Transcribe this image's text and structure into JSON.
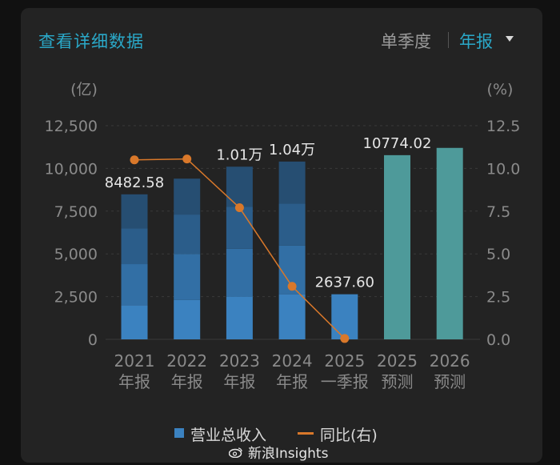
{
  "header": {
    "link_label": "查看详细数据",
    "toggle_quarterly": "单季度",
    "toggle_annual": "年报"
  },
  "chart_data": {
    "type": "bar",
    "left_unit": "(亿)",
    "right_unit": "(%)",
    "left_ticks": [
      "0",
      "2,500",
      "5,000",
      "7,500",
      "10,000",
      "12,500"
    ],
    "right_ticks": [
      "0.0",
      "2.5",
      "5.0",
      "7.5",
      "10.0",
      "12.5"
    ],
    "ylim_left": [
      0,
      12500
    ],
    "ylim_right": [
      0,
      12.5
    ],
    "categories": [
      {
        "year": "2021",
        "kind": "年报"
      },
      {
        "year": "2022",
        "kind": "年报"
      },
      {
        "year": "2023",
        "kind": "年报"
      },
      {
        "year": "2024",
        "kind": "年报"
      },
      {
        "year": "2025",
        "kind": "一季报"
      },
      {
        "year": "2025",
        "kind": "预测"
      },
      {
        "year": "2026",
        "kind": "预测"
      }
    ],
    "series": [
      {
        "name": "营业总收入",
        "axis": "left",
        "values": [
          8482.58,
          9400,
          10100,
          10400,
          2637.6,
          10774.02,
          11200
        ],
        "quarters": [
          [
            2000,
            2400,
            2100,
            1982.58
          ],
          [
            2300,
            2700,
            2300,
            2100
          ],
          [
            2500,
            2800,
            2450,
            2350
          ],
          [
            2637.6,
            2850,
            2450,
            2462.4
          ],
          [
            2637.6
          ],
          [],
          []
        ],
        "labels": [
          "8482.58",
          "",
          "1.01万",
          "1.04万",
          "2637.60",
          "10774.02",
          ""
        ]
      },
      {
        "name": "同比(右)",
        "axis": "right",
        "values": [
          10.5,
          10.55,
          7.7,
          3.1,
          0.05,
          null,
          null
        ]
      }
    ],
    "colors": {
      "actual_quarters": [
        "#3b82c0",
        "#326fa5",
        "#2b5d8a",
        "#264e72"
      ],
      "forecast": "#4e9a9a",
      "line": "#d9782a",
      "axis_text": "#8a8a8a",
      "grid": "#3a3a3a"
    },
    "legend": {
      "position": "bottom",
      "items": [
        "营业总收入",
        "同比(右)"
      ]
    }
  },
  "watermark": "新浪Insights"
}
